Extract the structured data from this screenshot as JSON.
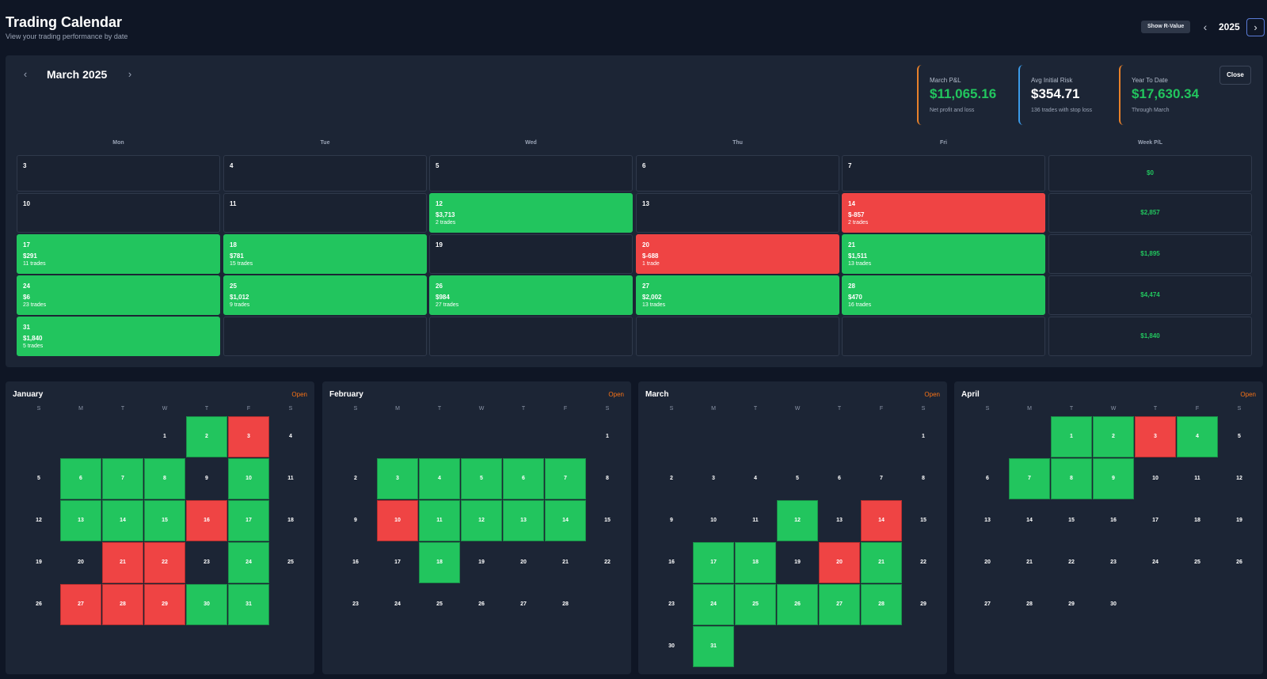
{
  "header": {
    "title": "Trading Calendar",
    "subtitle": "View your trading performance by date",
    "r_value_button": "Show R-Value",
    "year": "2025",
    "prev_icon": "chevron-left-icon",
    "next_icon": "chevron-right-icon"
  },
  "month_panel": {
    "title": "March 2025",
    "close_label": "Close",
    "stats": [
      {
        "label": "March P&L",
        "value": "$11,065.16",
        "sub": "Net profit and loss",
        "value_color": "#22c55e",
        "accent": "#e8812a"
      },
      {
        "label": "Avg Initial Risk",
        "value": "$354.71",
        "sub": "136 trades with stop loss",
        "value_color": "#ffffff",
        "accent": "#3b9ae8"
      },
      {
        "label": "Year To Date",
        "value": "$17,630.34",
        "sub": "Through March",
        "value_color": "#22c55e",
        "accent": "#e8812a"
      }
    ],
    "columns": [
      "Mon",
      "Tue",
      "Wed",
      "Thu",
      "Fri",
      "Week P/L"
    ],
    "weeks": [
      {
        "days": [
          {
            "num": "3",
            "pnl": "",
            "trades": "",
            "status": "none"
          },
          {
            "num": "4",
            "pnl": "",
            "trades": "",
            "status": "none"
          },
          {
            "num": "5",
            "pnl": "",
            "trades": "",
            "status": "none"
          },
          {
            "num": "6",
            "pnl": "",
            "trades": "",
            "status": "none"
          },
          {
            "num": "7",
            "pnl": "",
            "trades": "",
            "status": "none"
          }
        ],
        "week_pl": "$0"
      },
      {
        "days": [
          {
            "num": "10",
            "pnl": "",
            "trades": "",
            "status": "none"
          },
          {
            "num": "11",
            "pnl": "",
            "trades": "",
            "status": "none"
          },
          {
            "num": "12",
            "pnl": "$3,713",
            "trades": "2 trades",
            "status": "profit"
          },
          {
            "num": "13",
            "pnl": "",
            "trades": "",
            "status": "none"
          },
          {
            "num": "14",
            "pnl": "$-857",
            "trades": "2 trades",
            "status": "loss"
          }
        ],
        "week_pl": "$2,857"
      },
      {
        "days": [
          {
            "num": "17",
            "pnl": "$291",
            "trades": "11 trades",
            "status": "profit"
          },
          {
            "num": "18",
            "pnl": "$781",
            "trades": "15 trades",
            "status": "profit"
          },
          {
            "num": "19",
            "pnl": "",
            "trades": "",
            "status": "none"
          },
          {
            "num": "20",
            "pnl": "$-688",
            "trades": "1 trade",
            "status": "loss"
          },
          {
            "num": "21",
            "pnl": "$1,511",
            "trades": "13 trades",
            "status": "profit"
          }
        ],
        "week_pl": "$1,895"
      },
      {
        "days": [
          {
            "num": "24",
            "pnl": "$6",
            "trades": "23 trades",
            "status": "profit"
          },
          {
            "num": "25",
            "pnl": "$1,012",
            "trades": "9 trades",
            "status": "profit"
          },
          {
            "num": "26",
            "pnl": "$984",
            "trades": "27 trades",
            "status": "profit"
          },
          {
            "num": "27",
            "pnl": "$2,002",
            "trades": "13 trades",
            "status": "profit"
          },
          {
            "num": "28",
            "pnl": "$470",
            "trades": "16 trades",
            "status": "profit"
          }
        ],
        "week_pl": "$4,474"
      },
      {
        "days": [
          {
            "num": "31",
            "pnl": "$1,840",
            "trades": "5 trades",
            "status": "profit"
          },
          {
            "num": "",
            "pnl": "",
            "trades": "",
            "status": "none"
          },
          {
            "num": "",
            "pnl": "",
            "trades": "",
            "status": "none"
          },
          {
            "num": "",
            "pnl": "",
            "trades": "",
            "status": "none"
          },
          {
            "num": "",
            "pnl": "",
            "trades": "",
            "status": "none"
          }
        ],
        "week_pl": "$1,840"
      }
    ]
  },
  "mini_dow": [
    "S",
    "M",
    "T",
    "W",
    "T",
    "F",
    "S"
  ],
  "months": [
    {
      "name": "January",
      "open_label": "Open",
      "start_dow": 3,
      "days": 31,
      "profit": [
        2,
        6,
        7,
        8,
        10,
        13,
        14,
        15,
        17,
        24,
        30,
        31
      ],
      "loss": [
        3,
        16,
        21,
        22,
        27,
        28,
        29
      ]
    },
    {
      "name": "February",
      "open_label": "Open",
      "start_dow": 6,
      "days": 28,
      "profit": [
        3,
        4,
        5,
        6,
        7,
        11,
        12,
        13,
        14,
        18
      ],
      "loss": [
        10
      ]
    },
    {
      "name": "March",
      "open_label": "Open",
      "start_dow": 6,
      "days": 31,
      "profit": [
        12,
        17,
        18,
        21,
        24,
        25,
        26,
        27,
        28,
        31
      ],
      "loss": [
        14,
        20
      ]
    },
    {
      "name": "April",
      "open_label": "Open",
      "start_dow": 2,
      "days": 30,
      "profit": [
        1,
        2,
        4,
        7,
        8,
        9
      ],
      "loss": [
        3
      ]
    }
  ],
  "colors": {
    "profit": "#22c55e",
    "loss": "#ef4444",
    "open": "#f97316"
  }
}
